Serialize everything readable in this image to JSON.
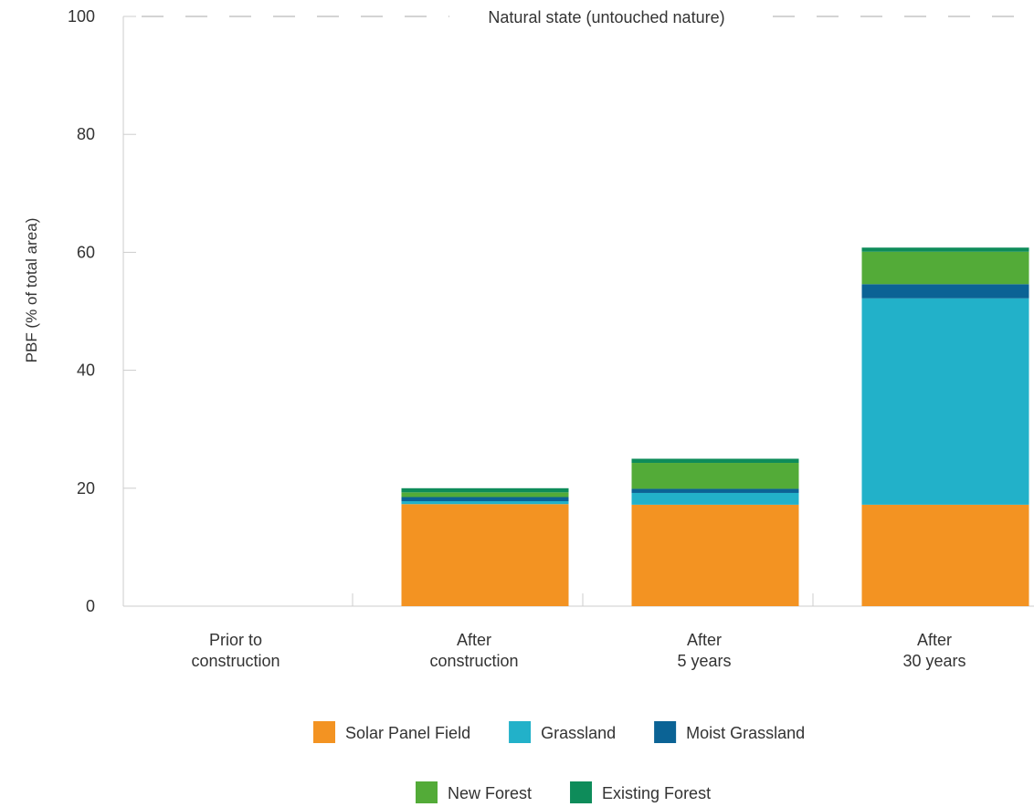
{
  "chart_data": {
    "type": "bar",
    "stacked": true,
    "ylabel": "PBF (% of total area)",
    "xlabel": "",
    "ylim": [
      0,
      100
    ],
    "yticks": [
      0,
      20,
      40,
      60,
      80,
      100
    ],
    "grid": false,
    "categories": [
      [
        "Prior to",
        "construction"
      ],
      [
        "After",
        "construction"
      ],
      [
        "After",
        "5 years"
      ],
      [
        "After",
        "30 years"
      ]
    ],
    "series": [
      {
        "name": "Solar Panel Field",
        "color": "#F39322",
        "values": [
          0,
          17.3,
          17.2,
          17.2
        ]
      },
      {
        "name": "Grassland",
        "color": "#22B1C9",
        "values": [
          0,
          0.5,
          2.0,
          35.0
        ]
      },
      {
        "name": "Moist Grassland",
        "color": "#0B6395",
        "values": [
          0,
          0.7,
          0.7,
          2.4
        ]
      },
      {
        "name": "New Forest",
        "color": "#53AB38",
        "values": [
          0,
          0.8,
          4.4,
          5.5
        ]
      },
      {
        "name": "Existing Forest",
        "color": "#0E8C5A",
        "values": [
          0,
          0.7,
          0.7,
          0.7
        ]
      }
    ],
    "reference_line": {
      "value": 100,
      "label": "Natural state (untouched nature)",
      "color": "#BBBBBB"
    },
    "legend_position": "bottom"
  }
}
